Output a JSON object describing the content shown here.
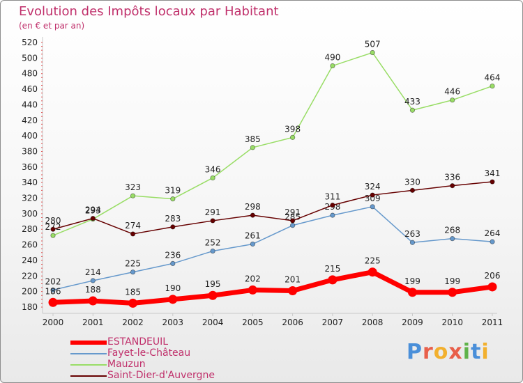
{
  "title": "Evolution des Impôts locaux par Habitant",
  "subtitle": "(en € et par an)",
  "logo": "Proxiti",
  "chart_data": {
    "type": "line",
    "title": "Evolution des Impôts locaux par Habitant",
    "subtitle": "(en € et par an)",
    "xlabel": "",
    "ylabel": "",
    "x": [
      2000,
      2001,
      2002,
      2003,
      2004,
      2005,
      2006,
      2007,
      2008,
      2009,
      2010,
      2011
    ],
    "ylim": [
      180,
      520
    ],
    "yticks": [
      180,
      200,
      220,
      240,
      260,
      280,
      300,
      320,
      340,
      360,
      380,
      400,
      420,
      440,
      460,
      480,
      500,
      520
    ],
    "grid": false,
    "legend_position": "bottom-left",
    "series": [
      {
        "name": "Mauzun",
        "color": "#99dd66",
        "values": [
          272,
          293,
          323,
          319,
          346,
          385,
          398,
          490,
          507,
          433,
          446,
          464
        ]
      },
      {
        "name": "Fayet-le-Château",
        "color": "#6699cc",
        "values": [
          202,
          214,
          225,
          236,
          252,
          261,
          285,
          298,
          309,
          263,
          268,
          264
        ]
      },
      {
        "name": "Saint-Dier-d'Auvergne",
        "color": "#660000",
        "values": [
          280,
          294,
          274,
          283,
          291,
          298,
          291,
          311,
          324,
          330,
          336,
          341
        ]
      },
      {
        "name": "ESTANDEUIL",
        "color": "#ff0000",
        "values": [
          186,
          188,
          185,
          190,
          195,
          202,
          201,
          215,
          225,
          199,
          199,
          206
        ]
      }
    ]
  },
  "legend": [
    {
      "label": "ESTANDEUIL",
      "color": "#ff0000"
    },
    {
      "label": "Fayet-le-Château",
      "color": "#6699cc"
    },
    {
      "label": "Mauzun",
      "color": "#99dd66"
    },
    {
      "label": "Saint-Dier-d'Auvergne",
      "color": "#660000"
    }
  ]
}
